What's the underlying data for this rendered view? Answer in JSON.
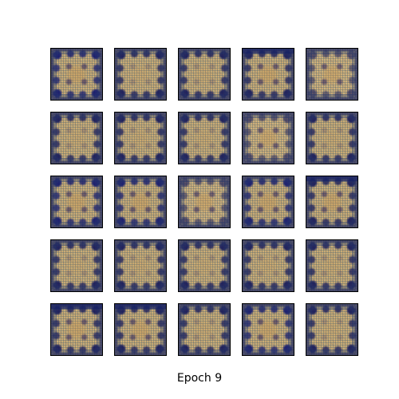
{
  "figure": {
    "caption": "Epoch 9",
    "grid_rows": 5,
    "grid_cols": 5,
    "tile_colors": {
      "base": "#c9ad76",
      "edge_blobs": "#0c125a",
      "frame": "#000000"
    },
    "tiles": [
      {
        "variant": "v-strong"
      },
      {
        "variant": "v-faint"
      },
      {
        "variant": "v-faint"
      },
      {
        "variant": "v-topheavy"
      },
      {
        "variant": "v-light"
      },
      {
        "variant": "v-faint"
      },
      {
        "variant": "v-faint"
      },
      {
        "variant": "v-faint"
      },
      {
        "variant": "v-light"
      },
      {
        "variant": "v-faint"
      },
      {
        "variant": "v-strong"
      },
      {
        "variant": "v-strong"
      },
      {
        "variant": "v-light"
      },
      {
        "variant": "v-strong"
      },
      {
        "variant": "v-topheavy"
      },
      {
        "variant": "v-faint"
      },
      {
        "variant": "v-faint"
      },
      {
        "variant": "v-faint"
      },
      {
        "variant": "v-faint"
      },
      {
        "variant": "v-faint"
      },
      {
        "variant": "v-topheavy"
      },
      {
        "variant": "v-topheavy"
      },
      {
        "variant": "v-faint"
      },
      {
        "variant": "v-strong"
      },
      {
        "variant": "v-faint"
      }
    ]
  }
}
